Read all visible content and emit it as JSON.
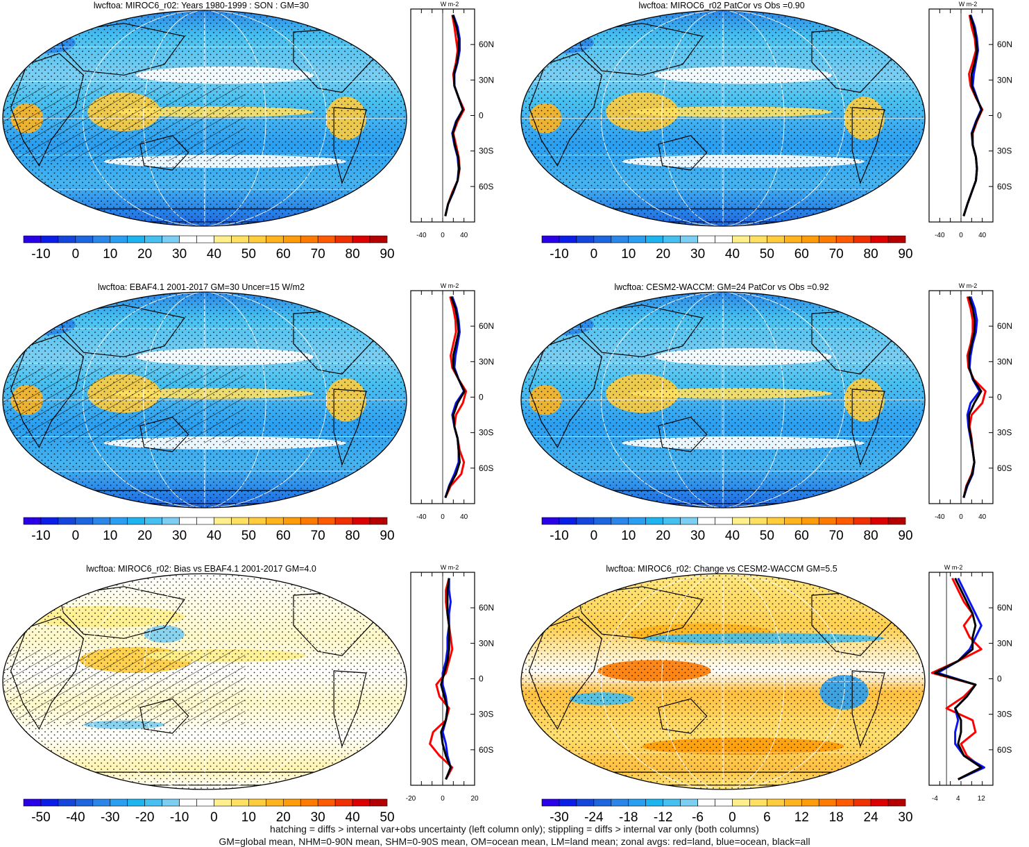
{
  "palette": [
    "#2a00e6",
    "#0a1ee8",
    "#1446dc",
    "#1e66e0",
    "#2a86e8",
    "#2a9ef0",
    "#1eb4f0",
    "#46c0f0",
    "#7ccef2",
    "#ffffff",
    "#ffffff",
    "#fff08c",
    "#ffe060",
    "#ffcc3c",
    "#ffb41e",
    "#ff9c0a",
    "#ff7a00",
    "#ff5a00",
    "#f03000",
    "#dc0000",
    "#b40000"
  ],
  "chart_data": [
    {
      "type": "heatmap",
      "title": "lwcftoa: MIROC6_r02: Years 1980-1999 : SON : GM=30",
      "colorbar": {
        "ticks": [
          "-10",
          "0",
          "10",
          "20",
          "30",
          "40",
          "50",
          "60",
          "70",
          "80",
          "90"
        ]
      },
      "zonal": {
        "unit_label": "W m-2",
        "x_ticks": [
          "-40",
          "0",
          "40"
        ],
        "xlim": [
          -60,
          60
        ],
        "lat_ticks": [
          "60N",
          "30N",
          "0",
          "30S",
          "60S"
        ],
        "lat": [
          -85,
          -75,
          -65,
          -55,
          -45,
          -35,
          -25,
          -15,
          -5,
          5,
          15,
          25,
          35,
          45,
          55,
          65,
          75,
          85
        ],
        "series": [
          {
            "color": "red",
            "values": [
              5,
              10,
              18,
              28,
              32,
              30,
              25,
              20,
              28,
              40,
              30,
              22,
              20,
              25,
              28,
              25,
              22,
              18
            ]
          },
          {
            "color": "blue",
            "values": [
              5,
              10,
              20,
              28,
              30,
              28,
              22,
              18,
              25,
              38,
              30,
              22,
              22,
              28,
              32,
              32,
              28,
              20
            ]
          },
          {
            "color": "black",
            "values": [
              5,
              10,
              19,
              28,
              31,
              29,
              23,
              19,
              26,
              38,
              30,
              22,
              21,
              27,
              30,
              30,
              26,
              19
            ]
          }
        ]
      }
    },
    {
      "type": "heatmap",
      "title": "lwcftoa: MIROC6_r02 PatCor vs Obs =0.90",
      "colorbar": {
        "ticks": [
          "-10",
          "0",
          "10",
          "20",
          "30",
          "40",
          "50",
          "60",
          "70",
          "80",
          "90"
        ]
      },
      "zonal": {
        "unit_label": "W m-2",
        "x_ticks": [
          "-40",
          "0",
          "40"
        ],
        "xlim": [
          -60,
          60
        ],
        "lat_ticks": [
          "60N",
          "30N",
          "0",
          "30S",
          "60S"
        ],
        "lat": [
          -85,
          -75,
          -65,
          -55,
          -45,
          -35,
          -25,
          -15,
          -5,
          5,
          15,
          25,
          35,
          45,
          55,
          65,
          75,
          85
        ],
        "series": [
          {
            "color": "red",
            "values": [
              5,
              12,
              20,
              28,
              30,
              28,
              22,
              22,
              30,
              40,
              28,
              18,
              15,
              22,
              28,
              26,
              20,
              16
            ]
          },
          {
            "color": "blue",
            "values": [
              5,
              12,
              20,
              28,
              30,
              28,
              22,
              20,
              28,
              38,
              30,
              22,
              24,
              28,
              32,
              30,
              26,
              18
            ]
          },
          {
            "color": "black",
            "values": [
              5,
              12,
              20,
              28,
              30,
              28,
              22,
              21,
              29,
              39,
              29,
              20,
              20,
              26,
              30,
              28,
              24,
              17
            ]
          }
        ]
      }
    },
    {
      "type": "heatmap",
      "title": "lwcftoa: EBAF4.1 2001-2017 GM=30 Uncer=15 W/m2",
      "colorbar": {
        "ticks": [
          "-10",
          "0",
          "10",
          "20",
          "30",
          "40",
          "50",
          "60",
          "70",
          "80",
          "90"
        ]
      },
      "zonal": {
        "unit_label": "W m-2",
        "x_ticks": [
          "-40",
          "0",
          "40"
        ],
        "xlim": [
          -60,
          60
        ],
        "lat_ticks": [
          "60N",
          "30N",
          "0",
          "30S",
          "60S"
        ],
        "lat": [
          -85,
          -75,
          -65,
          -55,
          -45,
          -35,
          -25,
          -15,
          -5,
          5,
          15,
          25,
          35,
          45,
          55,
          65,
          75,
          85
        ],
        "series": [
          {
            "color": "red",
            "values": [
              5,
              15,
              35,
              40,
              32,
              28,
              22,
              25,
              38,
              44,
              30,
              18,
              15,
              20,
              25,
              24,
              20,
              14
            ]
          },
          {
            "color": "blue",
            "values": [
              5,
              12,
              22,
              30,
              30,
              28,
              22,
              18,
              25,
              40,
              30,
              22,
              24,
              28,
              32,
              30,
              26,
              18
            ]
          },
          {
            "color": "black",
            "values": [
              5,
              13,
              25,
              32,
              30,
              28,
              22,
              20,
              28,
              41,
              30,
              20,
              20,
              25,
              30,
              28,
              24,
              16
            ]
          }
        ]
      }
    },
    {
      "type": "heatmap",
      "title": "lwcftoa: CESM2-WACCM: GM=24 PatCor vs Obs =0.92",
      "colorbar": {
        "ticks": [
          "-10",
          "0",
          "10",
          "20",
          "30",
          "40",
          "50",
          "60",
          "70",
          "80",
          "90"
        ]
      },
      "zonal": {
        "unit_label": "W m-2",
        "x_ticks": [
          "-40",
          "0",
          "40"
        ],
        "xlim": [
          -60,
          60
        ],
        "lat_ticks": [
          "60N",
          "30N",
          "0",
          "30S",
          "60S"
        ],
        "lat": [
          -85,
          -75,
          -65,
          -55,
          -45,
          -35,
          -25,
          -15,
          -5,
          5,
          15,
          25,
          35,
          45,
          55,
          65,
          75,
          85
        ],
        "series": [
          {
            "color": "red",
            "values": [
              5,
              10,
              20,
              25,
              22,
              20,
              16,
              20,
              40,
              46,
              24,
              14,
              12,
              18,
              22,
              22,
              18,
              12
            ]
          },
          {
            "color": "blue",
            "values": [
              5,
              12,
              22,
              25,
              22,
              18,
              14,
              12,
              18,
              35,
              22,
              16,
              18,
              22,
              28,
              30,
              26,
              18
            ]
          },
          {
            "color": "black",
            "values": [
              5,
              11,
              21,
              25,
              22,
              19,
              15,
              15,
              25,
              38,
              23,
              15,
              15,
              20,
              25,
              26,
              22,
              15
            ]
          }
        ]
      }
    },
    {
      "type": "heatmap",
      "title": "lwcftoa: MIROC6_r02: Bias vs EBAF4.1 2001-2017  GM=4.0",
      "colorbar": {
        "ticks": [
          "-50",
          "-40",
          "-30",
          "-20",
          "-10",
          "0",
          "10",
          "20",
          "30",
          "40",
          "50"
        ]
      },
      "zonal": {
        "unit_label": "W m-2",
        "x_ticks": [
          "-20",
          "0",
          "20"
        ],
        "xlim": [
          -20,
          20
        ],
        "lat_ticks": [
          "60N",
          "30N",
          "0",
          "30S",
          "60S"
        ],
        "lat": [
          -85,
          -75,
          -65,
          -55,
          -45,
          -35,
          -25,
          -15,
          -5,
          5,
          15,
          25,
          35,
          45,
          55,
          65,
          75,
          85
        ],
        "series": [
          {
            "color": "red",
            "values": [
              2,
              6,
              -2,
              -8,
              -6,
              2,
              4,
              -2,
              -4,
              2,
              4,
              6,
              5,
              4,
              3,
              2,
              2,
              4
            ]
          },
          {
            "color": "blue",
            "values": [
              2,
              5,
              3,
              2,
              0,
              2,
              3,
              2,
              0,
              0,
              2,
              3,
              3,
              4,
              4,
              5,
              4,
              4
            ]
          },
          {
            "color": "black",
            "values": [
              2,
              5,
              2,
              0,
              -1,
              2,
              3,
              1,
              -1,
              1,
              3,
              4,
              4,
              4,
              3,
              3,
              3,
              4
            ]
          }
        ]
      }
    },
    {
      "type": "heatmap",
      "title": "lwcftoa: MIROC6_r02: Change vs CESM2-WACCM GM=5.5",
      "colorbar": {
        "ticks": [
          "-30",
          "-24",
          "-18",
          "-12",
          "-6",
          "0",
          "6",
          "12",
          "18",
          "24",
          "30"
        ]
      },
      "zonal": {
        "unit_label": "W m-2",
        "x_ticks": [
          "-4",
          "4",
          "12"
        ],
        "xlim": [
          -6,
          16
        ],
        "lat_ticks": [
          "60N",
          "30N",
          "0",
          "30S",
          "60S"
        ],
        "lat": [
          -85,
          -75,
          -65,
          -55,
          -45,
          -35,
          -25,
          -15,
          -5,
          5,
          15,
          25,
          35,
          45,
          55,
          65,
          75,
          85
        ],
        "series": [
          {
            "color": "red",
            "values": [
              4,
              12,
              7,
              5,
              10,
              9,
              0,
              6,
              10,
              -5,
              4,
              12,
              8,
              6,
              9,
              6,
              4,
              2
            ]
          },
          {
            "color": "blue",
            "values": [
              4,
              13,
              6,
              3,
              3,
              4,
              3,
              7,
              10,
              -3,
              4,
              8,
              10,
              12,
              10,
              8,
              6,
              4
            ]
          },
          {
            "color": "black",
            "values": [
              4,
              12,
              6,
              4,
              5,
              5,
              3,
              7,
              10,
              -4,
              4,
              9,
              9,
              10,
              9,
              7,
              5,
              3
            ]
          }
        ]
      }
    }
  ],
  "footer": {
    "line1": "hatching = diffs > internal var+obs uncertainty (left column only); stippling = diffs > internal var only (both columns)",
    "line2": "GM=global mean, NHM=0-90N mean, SHM=0-90S mean, OM=ocean mean, LM=land mean; zonal avgs: red=land, blue=ocean, black=all"
  }
}
